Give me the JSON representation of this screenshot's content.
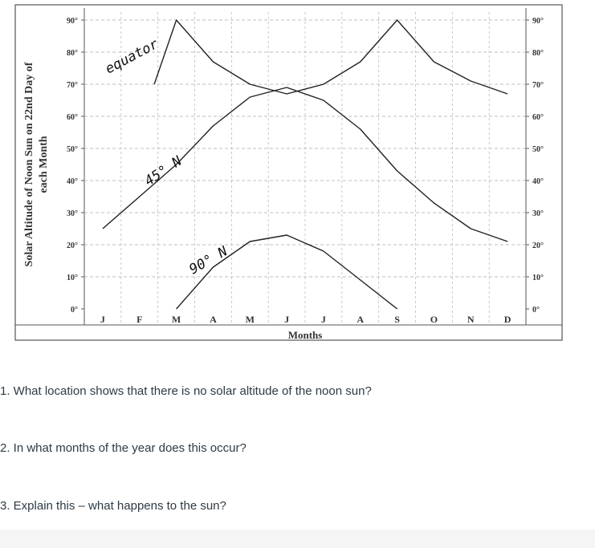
{
  "chart_data": {
    "type": "line",
    "ylabel": "Solar Altitude of Noon Sun on 22nd Day of each Month",
    "xlabel": "Months",
    "categories": [
      "J",
      "F",
      "M",
      "A",
      "M",
      "J",
      "J",
      "A",
      "S",
      "O",
      "N",
      "D"
    ],
    "y_ticks": [
      "0°",
      "10°",
      "20°",
      "30°",
      "40°",
      "50°",
      "60°",
      "70°",
      "80°",
      "90°"
    ],
    "ylim": [
      0,
      90
    ],
    "grid": true,
    "series": [
      {
        "name": "equator",
        "values": [
          null,
          null,
          90,
          77,
          70,
          67,
          70,
          77,
          90,
          77,
          71,
          67
        ],
        "start_x": 1.9,
        "start_y": 70
      },
      {
        "name": "45° N",
        "values": [
          25,
          35,
          45,
          57,
          66,
          69,
          65,
          56,
          43,
          33,
          25,
          21
        ]
      },
      {
        "name": "90° N",
        "values": [
          null,
          null,
          0,
          13,
          21,
          23,
          18,
          9,
          0,
          null,
          null,
          null
        ]
      }
    ]
  },
  "questions": [
    "1. What location shows that there is no solar altitude of the noon sun?",
    "2. In what months of the year does this occur?",
    "3. Explain this – what happens to the sun?"
  ]
}
